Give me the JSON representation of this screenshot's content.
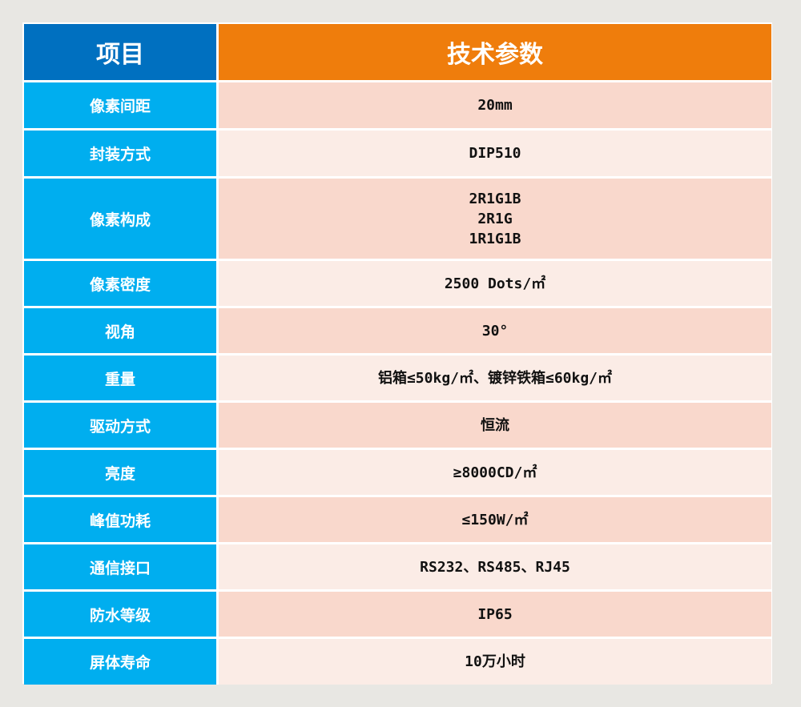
{
  "header": {
    "item": "项目",
    "spec": "技术参数"
  },
  "rows": [
    {
      "label": "像素间距",
      "value": [
        "20mm"
      ]
    },
    {
      "label": "封装方式",
      "value": [
        "DIP510"
      ]
    },
    {
      "label": "像素构成",
      "value": [
        "2R1G1B",
        "2R1G",
        "1R1G1B"
      ]
    },
    {
      "label": "像素密度",
      "value": [
        "2500 Dots/㎡"
      ]
    },
    {
      "label": "视角",
      "value": [
        "30°"
      ]
    },
    {
      "label": "重量",
      "value": [
        "铝箱≤50kg/㎡、镀锌铁箱≤60kg/㎡"
      ]
    },
    {
      "label": "驱动方式",
      "value": [
        "恒流"
      ]
    },
    {
      "label": "亮度",
      "value": [
        "≥8000CD/㎡"
      ]
    },
    {
      "label": "峰值功耗",
      "value": [
        "≤150W/㎡"
      ]
    },
    {
      "label": "通信接口",
      "value": [
        "RS232、RS485、RJ45"
      ]
    },
    {
      "label": "防水等级",
      "value": [
        "IP65"
      ]
    },
    {
      "label": "屏体寿命",
      "value": [
        "10万小时"
      ]
    }
  ],
  "colors": {
    "header_left": "#0070c0",
    "header_right": "#ef7d0c",
    "label_cell": "#00aeef",
    "row_odd": "#f9d8cc",
    "row_even": "#fbece6"
  }
}
